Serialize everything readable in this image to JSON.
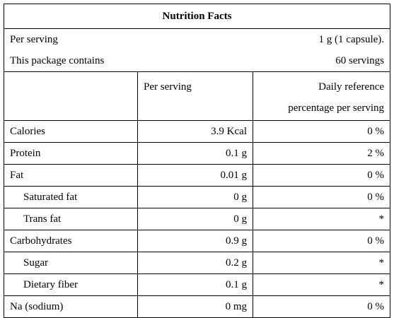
{
  "title": "Nutrition Facts",
  "serving": {
    "label": "Per serving",
    "value": "1 g (1 capsule)."
  },
  "package": {
    "label": "This package contains",
    "value": "60 servings"
  },
  "table": {
    "headers": {
      "per_serving": "Per serving",
      "daily": [
        "Daily reference",
        "percentage per serving"
      ]
    },
    "rows": [
      {
        "name": "Calories",
        "amount": "3.9 Kcal",
        "daily": "0 %"
      },
      {
        "name": "Protein",
        "amount": "0.1 g",
        "daily": "2 %"
      },
      {
        "name": "Fat",
        "amount": "0.01 g",
        "daily": "0 %",
        "items": [
          {
            "name": "Saturated fat",
            "amount": "0 g",
            "daily": "0 %"
          },
          {
            "name": "Trans fat",
            "amount": "0 g",
            "daily": "*"
          }
        ]
      },
      {
        "name": "Carbohydrates",
        "amount": "0.9 g",
        "daily": "0 %",
        "items": [
          {
            "name": "Sugar",
            "amount": "0.2 g",
            "daily": "*"
          },
          {
            "name": "Dietary fiber",
            "amount": "0.1 g",
            "daily": "*"
          }
        ]
      },
      {
        "name": "Na (sodium)",
        "amount": "0 mg",
        "daily": "0 %"
      }
    ]
  }
}
